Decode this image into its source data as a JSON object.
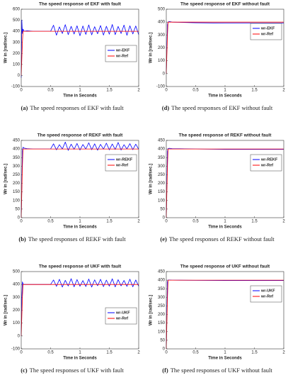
{
  "chart_data": [
    {
      "type": "line",
      "title": "The speed response of EKF with fault",
      "caption_label": "(a)",
      "caption": "The speed responses of EKF with fault",
      "xlabel": "Time in Seconds",
      "ylabel": "Wr in [rad/sec.]",
      "x": [
        0,
        0.01,
        0.02,
        0.03,
        0.05,
        0.1,
        0.2,
        0.3,
        0.4,
        0.5,
        0.55,
        0.6,
        0.65,
        0.7,
        0.75,
        0.8,
        0.85,
        0.9,
        0.95,
        1,
        1.05,
        1.1,
        1.15,
        1.2,
        1.25,
        1.3,
        1.35,
        1.4,
        1.45,
        1.5,
        1.55,
        1.6,
        1.65,
        1.7,
        1.75,
        1.8,
        1.85,
        1.9,
        1.95,
        2
      ],
      "xlim": [
        0,
        2
      ],
      "xticks": [
        0,
        0.5,
        1,
        1.5,
        2
      ],
      "ylim": [
        -100,
        600
      ],
      "yticks": [
        -100,
        0,
        100,
        200,
        300,
        400,
        500,
        600
      ],
      "legend": "center right",
      "series": [
        {
          "name": "wr-EKF",
          "color": "#0000ff",
          "values": [
            -20,
            500,
            380,
            420,
            400,
            405,
            400,
            400,
            400,
            400,
            455,
            365,
            440,
            380,
            460,
            370,
            445,
            375,
            450,
            360,
            448,
            372,
            458,
            368,
            442,
            378,
            452,
            366,
            446,
            374,
            462,
            370,
            444,
            380,
            456,
            364,
            450,
            376,
            448,
            370
          ]
        },
        {
          "name": "wr-Ref",
          "color": "#ff0000",
          "values": [
            0,
            150,
            300,
            400,
            400,
            400,
            400,
            400,
            400,
            400,
            400,
            400,
            400,
            400,
            400,
            400,
            400,
            400,
            400,
            400,
            400,
            400,
            400,
            400,
            400,
            400,
            400,
            400,
            400,
            400,
            400,
            400,
            400,
            400,
            400,
            400,
            400,
            400,
            400,
            400
          ]
        }
      ]
    },
    {
      "type": "line",
      "title": "The speed response of EKF without fault",
      "caption_label": "(d)",
      "caption": "The speed responses of EKF without fault",
      "xlabel": "Time in Seconds",
      "ylabel": "Wr in [rad/sec.]",
      "x": [
        0,
        0.01,
        0.02,
        0.03,
        0.05,
        0.1,
        0.5,
        1,
        1.5,
        2
      ],
      "xlim": [
        0,
        2
      ],
      "xticks": [
        0,
        0.5,
        1,
        1.5,
        2
      ],
      "ylim": [
        -100,
        500
      ],
      "yticks": [
        -100,
        0,
        100,
        200,
        300,
        400,
        500
      ],
      "legend": "upper right",
      "series": [
        {
          "name": "wr-EKF",
          "color": "#0000ff",
          "values": [
            0,
            200,
            380,
            400,
            405,
            400,
            395,
            392,
            392,
            392
          ]
        },
        {
          "name": "wr-Ref",
          "color": "#ff0000",
          "values": [
            0,
            150,
            300,
            400,
            400,
            400,
            400,
            400,
            400,
            400
          ]
        }
      ]
    },
    {
      "type": "line",
      "title": "The speed response of REKF with fault",
      "caption_label": "(b)",
      "caption": "The speed responses of REKF with fault",
      "xlabel": "Time in Seconds",
      "ylabel": "Wr in [rad/sec.]",
      "x": [
        0,
        0.01,
        0.02,
        0.03,
        0.05,
        0.1,
        0.2,
        0.3,
        0.4,
        0.5,
        0.55,
        0.6,
        0.65,
        0.7,
        0.75,
        0.8,
        0.85,
        0.9,
        0.95,
        1,
        1.05,
        1.1,
        1.15,
        1.2,
        1.25,
        1.3,
        1.35,
        1.4,
        1.45,
        1.5,
        1.55,
        1.6,
        1.65,
        1.7,
        1.75,
        1.8,
        1.85,
        1.9,
        1.95,
        2
      ],
      "xlim": [
        0,
        2
      ],
      "xticks": [
        0,
        0.5,
        1,
        1.5,
        2
      ],
      "ylim": [
        0,
        450
      ],
      "yticks": [
        0,
        50,
        100,
        150,
        200,
        250,
        300,
        350,
        400,
        450
      ],
      "legend": "upper right",
      "series": [
        {
          "name": "wr-REKF",
          "color": "#0000ff",
          "values": [
            0,
            180,
            390,
            410,
            405,
            402,
            400,
            400,
            400,
            400,
            430,
            395,
            425,
            400,
            440,
            392,
            428,
            398,
            432,
            394,
            426,
            400,
            436,
            396,
            430,
            393,
            427,
            399,
            434,
            395,
            429,
            397,
            438,
            394,
            425,
            400,
            431,
            396,
            428,
            398
          ]
        },
        {
          "name": "wr-Ref",
          "color": "#ff0000",
          "values": [
            0,
            150,
            300,
            400,
            400,
            400,
            400,
            400,
            400,
            400,
            400,
            400,
            400,
            400,
            400,
            400,
            400,
            400,
            400,
            400,
            400,
            400,
            400,
            400,
            400,
            400,
            400,
            400,
            400,
            400,
            400,
            400,
            400,
            400,
            400,
            400,
            400,
            400,
            400,
            400
          ]
        }
      ]
    },
    {
      "type": "line",
      "title": "The speed response of REKF without fault",
      "caption_label": "(e)",
      "caption": "The speed responses of REKF without fault",
      "xlabel": "Time in Seconds",
      "ylabel": "Wr in [rad/sec.]",
      "x": [
        0,
        0.01,
        0.02,
        0.03,
        0.05,
        0.1,
        0.5,
        1,
        1.5,
        2
      ],
      "xlim": [
        0,
        2
      ],
      "xticks": [
        0,
        0.5,
        1,
        1.5,
        2
      ],
      "ylim": [
        0,
        450
      ],
      "yticks": [
        0,
        50,
        100,
        150,
        200,
        250,
        300,
        350,
        400,
        450
      ],
      "legend": "upper right",
      "series": [
        {
          "name": "wr-REKF",
          "color": "#0000ff",
          "values": [
            0,
            200,
            385,
            402,
            404,
            402,
            400,
            398,
            398,
            398
          ]
        },
        {
          "name": "wr-Ref",
          "color": "#ff0000",
          "values": [
            0,
            150,
            300,
            400,
            400,
            400,
            400,
            400,
            400,
            400
          ]
        }
      ]
    },
    {
      "type": "line",
      "title": "The speed response of UKF with fault",
      "caption_label": "(c)",
      "caption": "The speed responses of UKF with fault",
      "xlabel": "Time in Seconds",
      "ylabel": "Wr in [rad/sec.]",
      "x": [
        0,
        0.01,
        0.02,
        0.03,
        0.05,
        0.1,
        0.2,
        0.3,
        0.4,
        0.5,
        0.55,
        0.6,
        0.65,
        0.7,
        0.75,
        0.8,
        0.85,
        0.9,
        0.95,
        1,
        1.05,
        1.1,
        1.15,
        1.2,
        1.25,
        1.3,
        1.35,
        1.4,
        1.45,
        1.5,
        1.55,
        1.6,
        1.65,
        1.7,
        1.75,
        1.8,
        1.85,
        1.9,
        1.95,
        2
      ],
      "xlim": [
        0,
        2
      ],
      "xticks": [
        0,
        0.5,
        1,
        1.5,
        2
      ],
      "ylim": [
        -100,
        500
      ],
      "yticks": [
        -100,
        0,
        100,
        200,
        300,
        400,
        500
      ],
      "legend": "center right",
      "series": [
        {
          "name": "wr-UKF",
          "color": "#0000ff",
          "values": [
            0,
            300,
            420,
            405,
            400,
            400,
            400,
            400,
            400,
            400,
            435,
            385,
            440,
            380,
            432,
            388,
            445,
            382,
            438,
            386,
            430,
            384,
            442,
            380,
            436,
            390,
            440,
            383,
            434,
            387,
            444,
            381,
            437,
            389,
            431,
            385,
            441,
            382,
            435,
            386
          ]
        },
        {
          "name": "wr-Ref",
          "color": "#ff0000",
          "values": [
            0,
            150,
            300,
            400,
            400,
            400,
            400,
            400,
            400,
            400,
            400,
            400,
            400,
            400,
            400,
            400,
            400,
            400,
            400,
            400,
            400,
            400,
            400,
            400,
            400,
            400,
            400,
            400,
            400,
            400,
            400,
            400,
            400,
            400,
            400,
            400,
            400,
            400,
            400,
            400
          ]
        }
      ]
    },
    {
      "type": "line",
      "title": "The speed response of UKF without fault",
      "caption_label": "(f)",
      "caption": "The speed responses of UKF without fault",
      "xlabel": "Time in Seconds",
      "ylabel": "Wr in [rad/sec.]",
      "x": [
        0,
        0.01,
        0.02,
        0.03,
        0.05,
        0.1,
        0.5,
        1,
        1.5,
        2
      ],
      "xlim": [
        0,
        2
      ],
      "xticks": [
        0,
        0.5,
        1,
        1.5,
        2
      ],
      "ylim": [
        0,
        450
      ],
      "yticks": [
        0,
        50,
        100,
        150,
        200,
        250,
        300,
        350,
        400,
        450
      ],
      "legend": "upper right",
      "series": [
        {
          "name": "wr-UKF",
          "color": "#0000ff",
          "values": [
            0,
            200,
            390,
            401,
            401,
            400,
            399,
            398,
            398,
            398
          ]
        },
        {
          "name": "wr-Ref",
          "color": "#ff0000",
          "values": [
            0,
            150,
            300,
            400,
            400,
            400,
            400,
            400,
            400,
            400
          ]
        }
      ]
    }
  ]
}
